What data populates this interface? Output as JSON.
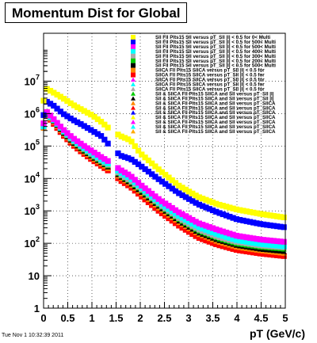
{
  "chart_data": {
    "type": "scatter",
    "title": "Momentum Dist for Global",
    "xlabel": "pT (GeV/c)",
    "ylabel": "",
    "xlim": [
      0,
      5
    ],
    "ylim": [
      1,
      300000000
    ],
    "yscale": "log",
    "grid": true,
    "legend_position": "top-right",
    "x_ticks": [
      "0",
      "0.5",
      "1",
      "1.5",
      "2",
      "2.5",
      "3",
      "3.5",
      "4",
      "4.5",
      "5"
    ],
    "y_ticks": [
      {
        "base": "1",
        "exp": ""
      },
      {
        "base": "10",
        "exp": ""
      },
      {
        "base": "10",
        "exp": "2"
      },
      {
        "base": "10",
        "exp": "3"
      },
      {
        "base": "10",
        "exp": "4"
      },
      {
        "base": "10",
        "exp": "5"
      },
      {
        "base": "10",
        "exp": "6"
      },
      {
        "base": "10",
        "exp": "7"
      }
    ],
    "series": [
      {
        "name": "Sll Fll Plts15 Sll versus pT_Sll |l| < 0.5 for 0< Multi",
        "color": "#ffff00",
        "marker": "square",
        "top": true,
        "y_points": [
          [
            0.0,
            2500000
          ],
          [
            0.05,
            6000000
          ],
          [
            0.2,
            4500000
          ],
          [
            0.4,
            3000000
          ],
          [
            0.6,
            1900000
          ],
          [
            0.8,
            1300000
          ],
          [
            1.0,
            900000
          ],
          [
            1.2,
            550000
          ],
          [
            1.4,
            300000
          ],
          [
            1.6,
            200000
          ],
          [
            1.8,
            150000
          ],
          [
            2.0,
            60000
          ],
          [
            2.4,
            18000
          ],
          [
            2.8,
            6000
          ],
          [
            3.2,
            2700
          ],
          [
            3.6,
            1600
          ],
          [
            4.0,
            1100
          ],
          [
            4.5,
            800
          ],
          [
            5.0,
            620
          ]
        ]
      },
      {
        "name": "Sll Fll Plts15 Sll versus pT_Sll |l| < 0.5 for 500< Multi",
        "color": "#0000ff",
        "marker": "square",
        "y_points": [
          [
            0.0,
            900000
          ],
          [
            0.05,
            2400000
          ],
          [
            0.2,
            1800000
          ],
          [
            0.4,
            1000000
          ],
          [
            0.6,
            650000
          ],
          [
            0.8,
            450000
          ],
          [
            1.0,
            300000
          ],
          [
            1.2,
            200000
          ],
          [
            1.4,
            90000
          ],
          [
            1.6,
            50000
          ],
          [
            1.8,
            40000
          ],
          [
            2.0,
            25000
          ],
          [
            2.4,
            9000
          ],
          [
            2.8,
            3500
          ],
          [
            3.2,
            1600
          ],
          [
            3.6,
            900
          ],
          [
            4.0,
            550
          ],
          [
            4.5,
            390
          ],
          [
            5.0,
            310
          ]
        ]
      },
      {
        "name": "Sll Fll Plts15 Sll versus pT_Sll |l| < 0.5 for 500< Multi",
        "color": "#ff00ff",
        "marker": "square",
        "y_points": [
          [
            0.0,
            500000
          ],
          [
            0.05,
            1200000
          ],
          [
            0.2,
            700000
          ],
          [
            0.4,
            330000
          ],
          [
            0.6,
            180000
          ],
          [
            0.8,
            110000
          ],
          [
            1.0,
            70000
          ],
          [
            1.2,
            45000
          ],
          [
            1.4,
            30000
          ],
          [
            1.6,
            18000
          ],
          [
            1.8,
            12000
          ],
          [
            2.0,
            6500
          ],
          [
            2.4,
            2200
          ],
          [
            2.8,
            900
          ],
          [
            3.2,
            420
          ],
          [
            3.6,
            260
          ],
          [
            4.0,
            170
          ],
          [
            4.5,
            130
          ],
          [
            5.0,
            110
          ]
        ]
      },
      {
        "name": "Sll Fll Plts15 Sll versus pT_Sll |l| < 0.5 for 400< Multi",
        "color": "#00ffff",
        "marker": "square",
        "y_points": [
          [
            0.0,
            400000
          ],
          [
            0.05,
            1000000
          ],
          [
            0.2,
            650000
          ],
          [
            0.4,
            300000
          ],
          [
            0.6,
            160000
          ],
          [
            0.8,
            95000
          ],
          [
            1.0,
            60000
          ],
          [
            1.2,
            38000
          ],
          [
            1.4,
            25000
          ],
          [
            1.6,
            15000
          ],
          [
            1.8,
            10000
          ],
          [
            2.0,
            5500
          ],
          [
            2.4,
            1800
          ],
          [
            2.8,
            700
          ],
          [
            3.2,
            320
          ],
          [
            3.6,
            190
          ],
          [
            4.0,
            125
          ],
          [
            4.5,
            95
          ],
          [
            5.0,
            80
          ]
        ]
      },
      {
        "name": "Sll Fll Plts15 Sll versus pT_Sll |l| < 0.5 for 300< Multi",
        "color": "#aaaaaa",
        "marker": "square",
        "y_points": [
          [
            0.0,
            450000
          ],
          [
            0.05,
            1100000
          ],
          [
            0.2,
            700000
          ],
          [
            0.4,
            300000
          ],
          [
            0.6,
            150000
          ],
          [
            0.8,
            90000
          ],
          [
            1.0,
            55000
          ],
          [
            1.2,
            35000
          ],
          [
            1.4,
            23000
          ],
          [
            1.6,
            13000
          ],
          [
            1.8,
            8500
          ],
          [
            2.0,
            5000
          ],
          [
            2.4,
            1600
          ],
          [
            2.8,
            600
          ],
          [
            3.2,
            270
          ],
          [
            3.6,
            160
          ],
          [
            4.0,
            110
          ],
          [
            4.5,
            85
          ],
          [
            5.0,
            75
          ]
        ]
      },
      {
        "name": "Sll Fll Plts15 Sll versus pT_Sll |l| < 0.5 for 200< Multi",
        "color": "#00cc00",
        "marker": "triangle",
        "y_points": [
          [
            0.0,
            550000
          ],
          [
            0.05,
            1300000
          ],
          [
            0.2,
            650000
          ],
          [
            0.4,
            280000
          ],
          [
            0.6,
            140000
          ],
          [
            0.8,
            82000
          ],
          [
            1.0,
            50000
          ],
          [
            1.2,
            32000
          ],
          [
            1.4,
            21000
          ],
          [
            1.6,
            12000
          ],
          [
            1.8,
            7800
          ],
          [
            2.0,
            4500
          ],
          [
            2.4,
            1450
          ],
          [
            2.8,
            540
          ],
          [
            3.2,
            240
          ],
          [
            3.6,
            140
          ],
          [
            4.0,
            95
          ],
          [
            4.5,
            75
          ],
          [
            5.0,
            65
          ]
        ]
      },
      {
        "name": "SllCA Fll Plts15 SllCA versus pT_Sll |l| < 0.5 for",
        "color": "#000000",
        "marker": "triangle",
        "y_points": [
          [
            0.0,
            400000
          ],
          [
            0.05,
            1000000
          ],
          [
            0.2,
            600000
          ],
          [
            0.4,
            260000
          ],
          [
            0.6,
            130000
          ],
          [
            0.8,
            76000
          ],
          [
            1.0,
            46000
          ],
          [
            1.2,
            30000
          ],
          [
            1.4,
            19000
          ],
          [
            1.6,
            11000
          ],
          [
            1.8,
            7000
          ],
          [
            2.0,
            4000
          ],
          [
            2.4,
            1300
          ],
          [
            2.8,
            480
          ],
          [
            3.2,
            210
          ],
          [
            3.6,
            125
          ],
          [
            4.0,
            85
          ],
          [
            4.5,
            65
          ],
          [
            5.0,
            55
          ]
        ]
      },
      {
        "name": "SllCA Fll Plts15 SllCA versus pT_Sll |l| < 0.5 for",
        "color": "#ff8800",
        "marker": "triangle",
        "y_points": [
          [
            0.0,
            350000
          ],
          [
            0.05,
            900000
          ],
          [
            0.2,
            550000
          ],
          [
            0.4,
            240000
          ],
          [
            0.6,
            120000
          ],
          [
            0.8,
            70000
          ],
          [
            1.0,
            42000
          ],
          [
            1.2,
            27000
          ],
          [
            1.4,
            17000
          ],
          [
            1.6,
            10000
          ],
          [
            1.8,
            6300
          ],
          [
            2.0,
            3600
          ],
          [
            2.4,
            1150
          ],
          [
            2.8,
            430
          ],
          [
            3.2,
            190
          ],
          [
            3.6,
            110
          ],
          [
            4.0,
            75
          ],
          [
            4.5,
            58
          ],
          [
            5.0,
            48
          ]
        ]
      },
      {
        "name": "SllCA Fll Plts15 SllCA versus pT_Sll |l| < 0.5 for",
        "color": "#ff0000",
        "marker": "square",
        "y_points": [
          [
            0.0,
            380000
          ],
          [
            0.05,
            950000
          ],
          [
            0.2,
            500000
          ],
          [
            0.4,
            220000
          ],
          [
            0.6,
            110000
          ],
          [
            0.8,
            63000
          ],
          [
            1.0,
            38000
          ],
          [
            1.2,
            24000
          ],
          [
            1.4,
            15000
          ],
          [
            1.6,
            8500
          ],
          [
            1.8,
            5500
          ],
          [
            2.0,
            3000
          ],
          [
            2.4,
            950
          ],
          [
            2.8,
            350
          ],
          [
            3.2,
            150
          ],
          [
            3.6,
            90
          ],
          [
            4.0,
            62
          ],
          [
            4.5,
            48
          ],
          [
            5.0,
            40
          ]
        ]
      }
    ],
    "legend_entries": [
      {
        "label": "Sll Fll Plts15 Sll versus pT_Sll |l| < 0.5 for 0< Multi",
        "color": "#ffff00",
        "marker": "square"
      },
      {
        "label": "Sll Fll Plts15 Sll versus pT_Sll |l| < 0.5 for 500< Multi",
        "color": "#0000ff",
        "marker": "square"
      },
      {
        "label": "Sll Fll Plts15 Sll versus pT_Sll |l| < 0.5 for 500< Multi",
        "color": "#ff00ff",
        "marker": "square"
      },
      {
        "label": "Sll Fll Plts15 Sll versus pT_Sll |l| < 0.5 for 400< Multi",
        "color": "#00ffff",
        "marker": "square"
      },
      {
        "label": "Sll Fll Plts15 Sll versus pT_Sll |l| < 0.5 for 300< Multi",
        "color": "#aaaaaa",
        "marker": "square"
      },
      {
        "label": "Sll Fll Plts15 Sll versus pT_Sll |l| < 0.5 for 200< Multi",
        "color": "#00cc00",
        "marker": "square"
      },
      {
        "label": "Sll Fll Plts15 Sll versus pT_Sll |l| < 0.5 for 500< Multi",
        "color": "#000000",
        "marker": "square"
      },
      {
        "label": "SllCA Fll Plts15 SllCA versus pT_Sll |l| < 0.5 for",
        "color": "#ff8800",
        "marker": "square"
      },
      {
        "label": "SllCA Fll Plts15 SllCA versus pT_Sll |l| < 0.5 for",
        "color": "#ff0000",
        "marker": "square"
      },
      {
        "label": "SllCA Fll Plts15 SllCA versus pT_Sll |l| < 0.5 for",
        "color": "#ff00ff",
        "marker": "triangle"
      },
      {
        "label": "SllCA Fll Plts15 SllCA versus pT_Sll |l| < 0.5 for",
        "color": "#00ffff",
        "marker": "triangle"
      },
      {
        "label": "SllCA Fll Plts15 SllCA versus pT_Sll |l| < 0.5 for",
        "color": "#aaaaaa",
        "marker": "triangle"
      },
      {
        "label": "Sll & SllCA Fll Plts15 SllCA and Sll versus pT_Sll |l|",
        "color": "#00cc00",
        "marker": "triangle"
      },
      {
        "label": "Sll & SllCA Fll Plts15 SllCA and Sll versus pT_Sll |l|",
        "color": "#000000",
        "marker": "triangle"
      },
      {
        "label": "Sll & SllCA Fll Plts15 SllCA and Sll versus pT_SllCA",
        "color": "#ff8800",
        "marker": "triangle"
      },
      {
        "label": "Sll & SllCA Fll Plts15 SllCA and Sll versus pT_SllCA",
        "color": "#ff0000",
        "marker": "triangle"
      },
      {
        "label": "Sll & SllCA Fll Plts15 SllCA and Sll versus pT_SllCA",
        "color": "#0000ff",
        "marker": "triangle"
      },
      {
        "label": "Sll & SllCA Fll Plts15 SllCA and Sll versus pT_SllCA",
        "color": "#ffff00",
        "marker": "triangle"
      },
      {
        "label": "Sll & SllCA Fll Plts15 SllCA and Sll versus pT_SllCA",
        "color": "#ff00ff",
        "marker": "triangle"
      },
      {
        "label": "Sll & SllCA Fll Plts15 SllCA and Sll versus pT_SllCA",
        "color": "#00ffff",
        "marker": "triangle"
      },
      {
        "label": "Sll & SllCA Fll Plts15 SllCA and Sll versus pT_SllCA",
        "color": "#ffaa00",
        "marker": "triangle"
      }
    ]
  },
  "footer": {
    "date": "Tue Nov  1 10:32:39 2011"
  }
}
